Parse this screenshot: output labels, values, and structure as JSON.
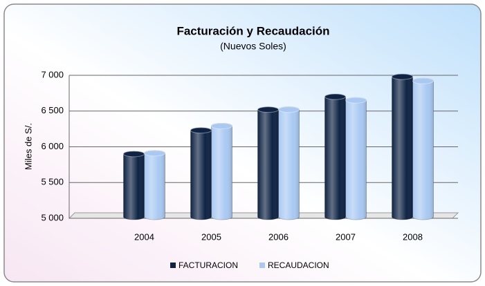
{
  "chart_data": {
    "type": "bar",
    "title": "Facturación y Recaudación",
    "subtitle": "(Nuevos Soles)",
    "y_label": "Miles de S/.",
    "categories": [
      "2004",
      "2005",
      "2006",
      "2007",
      "2008"
    ],
    "series": [
      {
        "name": "FACTURACION",
        "color": "#0f2444",
        "values": [
          5900,
          6230,
          6520,
          6700,
          6980
        ]
      },
      {
        "name": "RECAUDACION",
        "color": "#a9c9f2",
        "values": [
          5910,
          6290,
          6520,
          6650,
          6920
        ]
      }
    ],
    "ylim": [
      5000,
      7000
    ],
    "yticks": [
      {
        "value": 5000,
        "label": "5 000"
      },
      {
        "value": 5500,
        "label": "5 500"
      },
      {
        "value": 6000,
        "label": "6 000"
      },
      {
        "value": 6500,
        "label": "6 500"
      },
      {
        "value": 7000,
        "label": "7 000"
      }
    ],
    "grid": true
  }
}
